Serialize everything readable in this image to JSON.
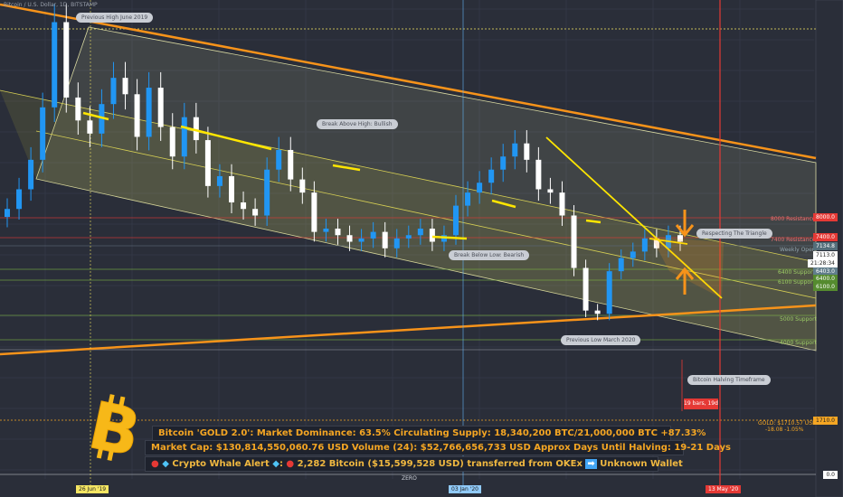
{
  "header": {
    "symbol": "Bitcoin / U.S. Dollar, 1D, BITSTAMP"
  },
  "info_lines": {
    "line1": "Bitcoin 'GOLD 2.0': Market Dominance: 63.5%  Circulating Supply: 18,340,200 BTC/21,000,000 BTC +87.33%",
    "line2": "Market Cap: $130,814,550,060.76 USD Volume (24): $52,766,656,733 USD Approx Days Until Halving: 19-21 Days",
    "line3_prefix": "Crypto Whale Alert",
    "line3_text": "2,282 Bitcoin ($15,599,528 USD) transferred from OKEx",
    "line3_suffix": "Unknown Wallet"
  },
  "annotations": {
    "prev_high": "Previous High June 2019",
    "break_above": "Break Above High: Bullish",
    "break_below": "Break Below Low: Bearish",
    "respect_triangle": "Respecting The Triangle",
    "prev_low": "Previous Low March 2020",
    "halving": "Bitcoin Halving Timeframe",
    "countdown": "19 bars, 19d"
  },
  "level_labels": {
    "r8000": "8000 Resistance",
    "r7400": "7400 Resistance",
    "weekly": "Weekly Open",
    "s6400": "6400 Support",
    "s6100": "6100 Support",
    "s5000": "5000 Support",
    "s4000": "4000 Support",
    "gold": "GOLD: $1710.57 USD",
    "gold_chg": "-18.08 -1.05%"
  },
  "price_labels": {
    "p8000": "8000.0",
    "p7400": "7400.0",
    "p7134": "7134.8",
    "p7113": "7113.0",
    "timer": "21:28:34",
    "p6403": "6403.0",
    "p6400": "6400.0",
    "p6100": "6100.0",
    "p1710": "1710.0",
    "p0": "0.0"
  },
  "x_labels": {
    "jun19": "26 Jun '19",
    "jan20": "03 Jan '20",
    "may20": "13 May '20",
    "zero": "ZERO"
  },
  "colors": {
    "background": "#2a2e39",
    "up": "#2196f3",
    "down": "#ffffff",
    "channel": "#d8d8a0",
    "trend_orange": "#f7931a",
    "triangle": "#ffe600",
    "resistance": "#e53935",
    "support": "#7cb342"
  },
  "chart_data": {
    "type": "candlestick",
    "title": "Bitcoin / U.S. Dollar",
    "ylim": [
      0,
      14200
    ],
    "x_range": [
      "2019-05-01",
      "2020-06-15"
    ],
    "levels": [
      {
        "name": "8000 Resistance",
        "value": 8000
      },
      {
        "name": "7400 Resistance",
        "value": 7400
      },
      {
        "name": "Weekly Open",
        "value": 7134.8
      },
      {
        "name": "6400 Support",
        "value": 6400
      },
      {
        "name": "6100 Support",
        "value": 6100
      },
      {
        "name": "5000 Support",
        "value": 5000
      },
      {
        "name": "4000 Support",
        "value": 4000
      },
      {
        "name": "GOLD",
        "value": 1710
      }
    ],
    "series": [
      {
        "values_close": [
          8100,
          8700,
          9600,
          11200,
          13800,
          11500,
          10800,
          10400,
          11300,
          12100,
          11600,
          10300,
          11800,
          10600,
          9700,
          10900,
          10200,
          8800,
          9100,
          8300,
          8100,
          7900,
          9300,
          9900,
          9000,
          8600,
          7400,
          7500,
          7300,
          7100,
          7200,
          7400,
          6900,
          7200,
          7300,
          7500,
          7100,
          7300,
          8200,
          8600,
          8900,
          9300,
          9700,
          10100,
          9600,
          8700,
          8600,
          7900,
          6300,
          5000,
          4900,
          6200,
          6600,
          6800,
          7200,
          6900,
          7300,
          7100
        ]
      }
    ]
  }
}
